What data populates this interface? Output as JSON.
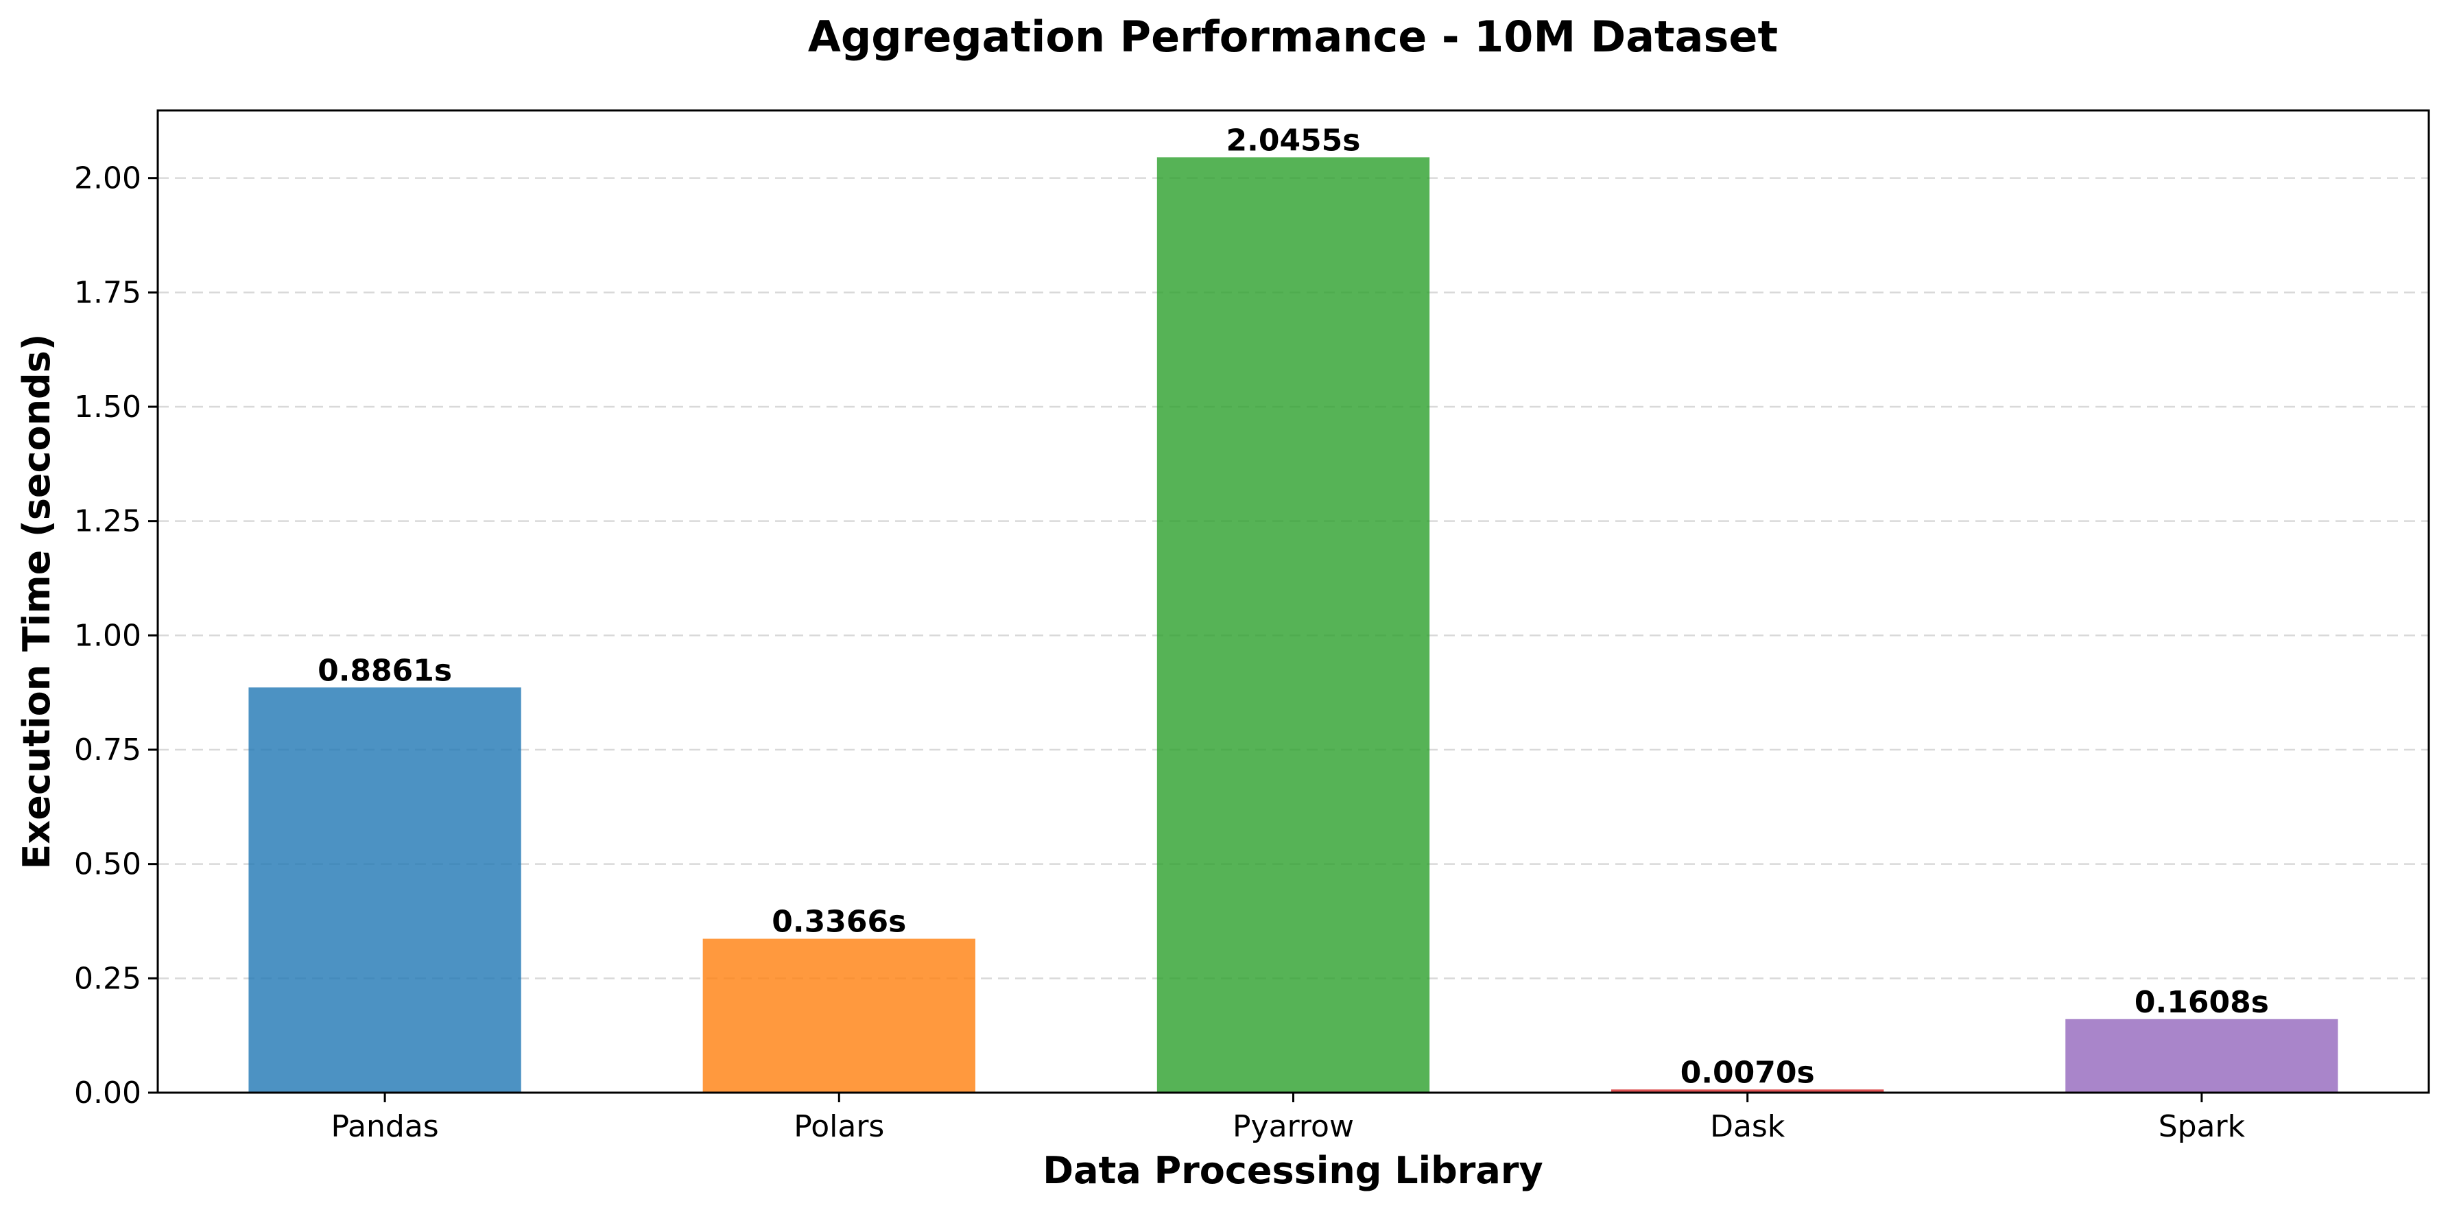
{
  "chart_data": {
    "type": "bar",
    "title": "Aggregation Performance - 10M Dataset",
    "xlabel": "Data Processing Library",
    "ylabel": "Execution Time (seconds)",
    "categories": [
      "Pandas",
      "Polars",
      "Pyarrow",
      "Dask",
      "Spark"
    ],
    "values": [
      0.8861,
      0.3366,
      2.0455,
      0.007,
      0.1608
    ],
    "data_labels": [
      "0.8861s",
      "0.3366s",
      "2.0455s",
      "0.0070s",
      "0.1608s"
    ],
    "colors": [
      "#1f77b4",
      "#ff7f0e",
      "#2ca02c",
      "#d62728",
      "#9467bd"
    ],
    "bar_opacity": 0.8,
    "ylim": [
      0,
      2.148
    ],
    "yticks": [
      0.0,
      0.25,
      0.5,
      0.75,
      1.0,
      1.25,
      1.5,
      1.75,
      2.0
    ],
    "ytick_labels": [
      "0.00",
      "0.25",
      "0.50",
      "0.75",
      "1.00",
      "1.25",
      "1.50",
      "1.75",
      "2.00"
    ],
    "grid": {
      "axis": "y",
      "style": "dashed"
    },
    "legend": false
  }
}
